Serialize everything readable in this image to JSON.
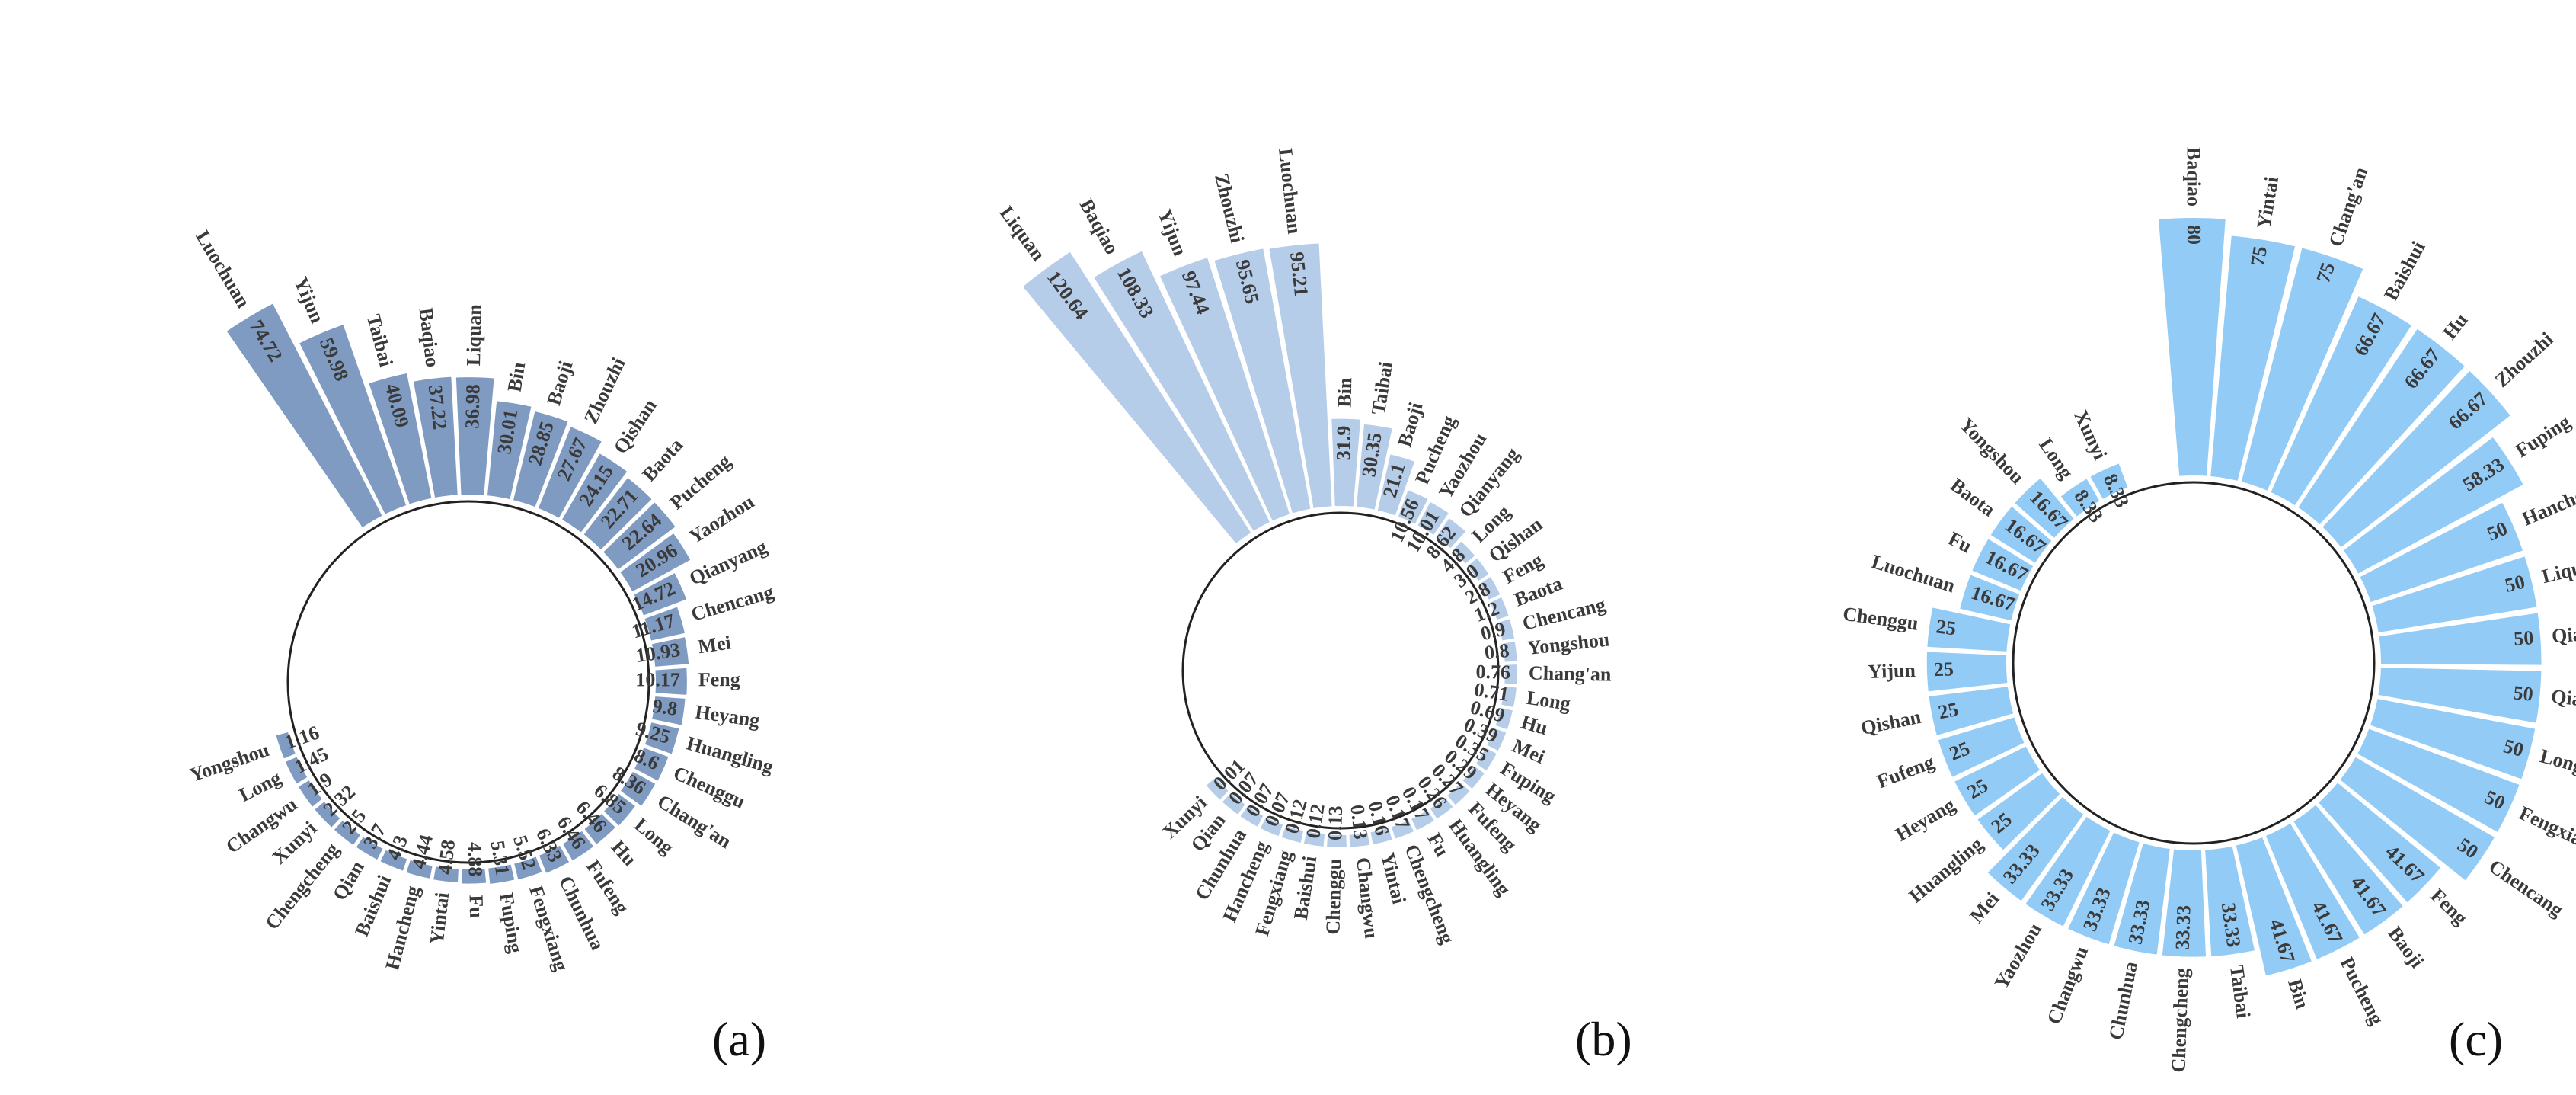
{
  "chart_data": [
    {
      "type": "bar",
      "subtype": "circular-bar",
      "panel_label": "(a)",
      "color": "#7f9bc2",
      "categories": [
        "Luochuan",
        "Yijun",
        "Taibai",
        "Baqiao",
        "Liquan",
        "Bin",
        "Baoji",
        "Zhouzhi",
        "Qishan",
        "Baota",
        "Pucheng",
        "Yaozhou",
        "Qianyang",
        "Chencang",
        "Mei",
        "Feng",
        "Heyang",
        "Huangling",
        "Chenggu",
        "Chang'an",
        "Long",
        "Hu",
        "Fufeng",
        "Chunhua",
        "Fengxiang",
        "Fuping",
        "Fu",
        "Yintai",
        "Hancheng",
        "Baishui",
        "Qian",
        "Chengcheng",
        "Xunyi",
        "Changwu",
        "Long",
        "Yongshou"
      ],
      "values": [
        74.72,
        59.98,
        40.09,
        37.22,
        36.98,
        30.01,
        28.85,
        27.67,
        24.15,
        22.71,
        22.64,
        20.96,
        14.72,
        11.17,
        10.93,
        10.17,
        9.8,
        9.25,
        8.6,
        8.36,
        6.85,
        6.46,
        6.46,
        6.33,
        5.52,
        5.31,
        4.88,
        4.58,
        4.44,
        4.3,
        3.7,
        2.5,
        2.32,
        1.9,
        1.45,
        1.16
      ],
      "value_labels": [
        "74.72",
        "59.98",
        "40.09",
        "37.22",
        "36.98",
        "30.01",
        "28.85",
        "27.67",
        "24.15",
        "22.71",
        "22.64",
        "20.96",
        "14.72",
        "11.17",
        "10.93",
        "10.17",
        "9.8",
        "9.25",
        "8.6",
        "8.36",
        "6.85",
        "6.46",
        "6.46",
        "6.33",
        "5.52",
        "5.31",
        "4.88",
        "4.58",
        "4.44",
        "4.3",
        "3.7",
        "2.5",
        "2.32",
        "1.9",
        "1.45",
        "1.16"
      ]
    },
    {
      "type": "bar",
      "subtype": "circular-bar",
      "panel_label": "(b)",
      "color": "#b5cde9",
      "categories": [
        "Liquan",
        "Baqiao",
        "Yijun",
        "Zhouzhi",
        "Luochuan",
        "Bin",
        "Taibai",
        "Baoji",
        "Pucheng",
        "Yaozhou",
        "Qianyang",
        "Long",
        "Qishan",
        "Feng",
        "Baota",
        "Chencang",
        "Yongshou",
        "Chang'an",
        "Long",
        "Hu",
        "Mei",
        "Fuping",
        "Heyang",
        "Fufeng",
        "Huangling",
        "Fu",
        "Chengcheng",
        "Yintai",
        "Changwu",
        "Chenggu",
        "Baishui",
        "Fengxiang",
        "Hancheng",
        "Chunhua",
        "Qian",
        "Xunyi"
      ],
      "values": [
        120.64,
        108.33,
        97.44,
        95.65,
        95.21,
        31.9,
        30.35,
        21.1,
        10.56,
        10.01,
        8.62,
        4.8,
        3.0,
        2.8,
        1.2,
        0.9,
        0.8,
        0.76,
        0.71,
        0.69,
        0.39,
        0.35,
        0.29,
        0.27,
        0.26,
        0.17,
        0.17,
        0.16,
        0.13,
        0.13,
        0.12,
        0.12,
        0.07,
        0.07,
        0.07,
        0.01
      ],
      "value_labels": [
        "120.64",
        "108.33",
        "97.44",
        "95.65",
        "95.21",
        "31.9",
        "30.35",
        "21.1",
        "10.56",
        "10.01",
        "8.62",
        "4.8",
        "3.0",
        "2.8",
        "1.2",
        "0.9",
        "0.8",
        "0.76",
        "0.71",
        "0.69",
        "0.39",
        "0.35",
        "0.29",
        "0.27",
        "0.26",
        "0.17",
        "0.17",
        "0.16",
        "0.13",
        "0.13",
        "0.12",
        "0.12",
        "0.07",
        "0.07",
        "0.07",
        "0.01"
      ]
    },
    {
      "type": "bar",
      "subtype": "circular-bar",
      "panel_label": "(c)",
      "color": "#93cbf7",
      "categories": [
        "Baqiao",
        "Yintai",
        "Chang'an",
        "Baishui",
        "Hu",
        "Zhouzhi",
        "Fuping",
        "Hancheng",
        "Liquan",
        "Qian",
        "Qianyang",
        "Long",
        "Fengxiang",
        "Chencang",
        "Feng",
        "Baoji",
        "Pucheng",
        "Bin",
        "Taibai",
        "Chengcheng",
        "Chunhua",
        "Changwu",
        "Yaozhou",
        "Mei",
        "Huangling",
        "Heyang",
        "Fufeng",
        "Qishan",
        "Yijun",
        "Chenggu",
        "Luochuan",
        "Fu",
        "Baota",
        "Yongshou",
        "Long",
        "Xunyi"
      ],
      "values": [
        80,
        75,
        75,
        66.67,
        66.67,
        66.67,
        58.33,
        50,
        50,
        50,
        50,
        50,
        50,
        50,
        41.67,
        41.67,
        41.67,
        41.67,
        33.33,
        33.33,
        33.33,
        33.33,
        33.33,
        33.33,
        25,
        25,
        25,
        25,
        25,
        25,
        16.67,
        16.67,
        16.67,
        16.67,
        8.33,
        8.33
      ],
      "value_labels": [
        "80",
        "75",
        "75",
        "66.67",
        "66.67",
        "66.67",
        "58.33",
        "50",
        "50",
        "50",
        "50",
        "50",
        "50",
        "50",
        "41.67",
        "41.67",
        "41.67",
        "41.67",
        "33.33",
        "33.33",
        "33.33",
        "33.33",
        "33.33",
        "33.33",
        "25",
        "25",
        "25",
        "25",
        "25",
        "25",
        "16.67",
        "16.67",
        "16.67",
        "16.67",
        "8.33",
        "8.33"
      ]
    }
  ]
}
